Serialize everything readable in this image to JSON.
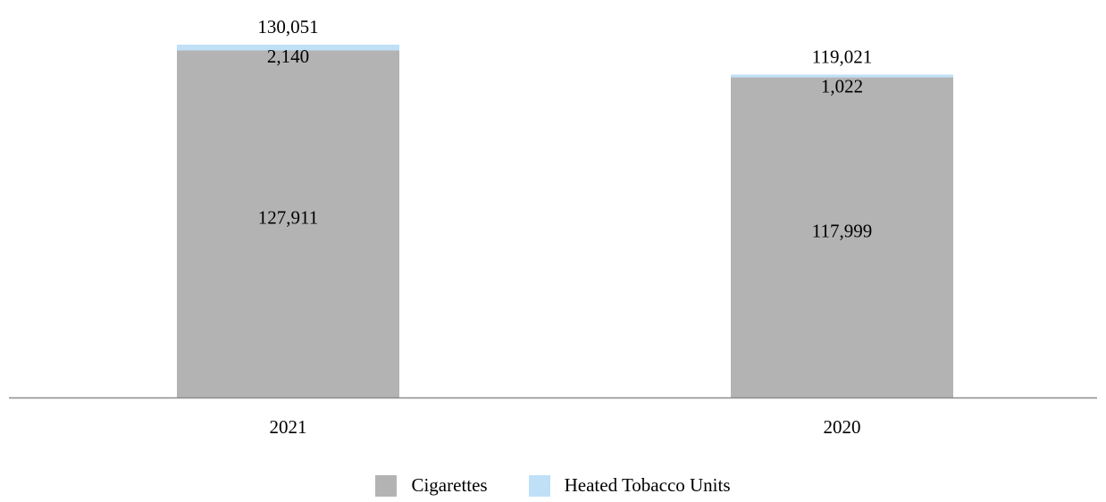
{
  "chart_data": {
    "type": "bar",
    "stacked": true,
    "categories": [
      "2021",
      "2020"
    ],
    "series": [
      {
        "name": "Cigarettes",
        "values": [
          127911,
          117999
        ],
        "labels": [
          "127,911",
          "117,999"
        ],
        "color": "#b3b3b3"
      },
      {
        "name": "Heated Tobacco Units",
        "values": [
          2140,
          1022
        ],
        "labels": [
          "2,140",
          "1,022"
        ],
        "color": "#bfe0f7"
      }
    ],
    "totals": [
      130051,
      119021
    ],
    "total_labels": [
      "130,051",
      "119,021"
    ],
    "ylim": [
      0,
      130051
    ],
    "axis_color": "#8c8c8c",
    "grid": false,
    "legend_position": "bottom-center"
  }
}
